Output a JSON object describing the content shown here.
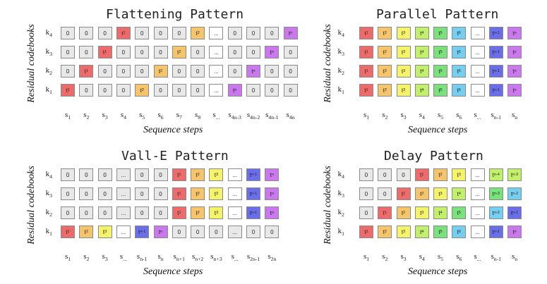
{
  "axis": {
    "ylabel": "Residual codebooks",
    "xlabel": "Sequence steps"
  },
  "palette": {
    "gray": "#e8e8e8",
    "red": "#ee6b6b",
    "orange": "#f6c46a",
    "yellow": "#f4f36a",
    "lime": "#c3f06a",
    "green": "#79e27a",
    "cyan": "#74cff0",
    "white": "#ffffff",
    "blue": "#6a6ee8",
    "purple": "#cb78ee"
  },
  "panels": [
    {
      "title": "Flattening Pattern",
      "rows": [
        {
          "label": "k|4",
          "cells": [
            [
              "0",
              "gray"
            ],
            [
              "0",
              "gray"
            ],
            [
              "0",
              "gray"
            ],
            [
              "t|1",
              "red"
            ],
            [
              "0",
              "gray"
            ],
            [
              "0",
              "gray"
            ],
            [
              "0",
              "gray"
            ],
            [
              "t|2",
              "orange"
            ],
            [
              "...",
              "white"
            ],
            [
              "0",
              "gray"
            ],
            [
              "0",
              "gray"
            ],
            [
              "0",
              "gray"
            ],
            [
              "t|n",
              "purple"
            ]
          ]
        },
        {
          "label": "k|3",
          "cells": [
            [
              "0",
              "gray"
            ],
            [
              "0",
              "gray"
            ],
            [
              "t|1",
              "red"
            ],
            [
              "0",
              "gray"
            ],
            [
              "0",
              "gray"
            ],
            [
              "0",
              "gray"
            ],
            [
              "t|2",
              "orange"
            ],
            [
              "0",
              "gray"
            ],
            [
              "...",
              "white"
            ],
            [
              "0",
              "gray"
            ],
            [
              "0",
              "gray"
            ],
            [
              "t|n",
              "purple"
            ],
            [
              "0",
              "gray"
            ]
          ]
        },
        {
          "label": "k|2",
          "cells": [
            [
              "0",
              "gray"
            ],
            [
              "t|1",
              "red"
            ],
            [
              "0",
              "gray"
            ],
            [
              "0",
              "gray"
            ],
            [
              "0",
              "gray"
            ],
            [
              "t|2",
              "orange"
            ],
            [
              "0",
              "gray"
            ],
            [
              "0",
              "gray"
            ],
            [
              "...",
              "white"
            ],
            [
              "0",
              "gray"
            ],
            [
              "t|n",
              "purple"
            ],
            [
              "0",
              "gray"
            ],
            [
              "0",
              "gray"
            ]
          ]
        },
        {
          "label": "k|1",
          "cells": [
            [
              "t|1",
              "red"
            ],
            [
              "0",
              "gray"
            ],
            [
              "0",
              "gray"
            ],
            [
              "0",
              "gray"
            ],
            [
              "t|2",
              "orange"
            ],
            [
              "0",
              "gray"
            ],
            [
              "0",
              "gray"
            ],
            [
              "0",
              "gray"
            ],
            [
              "...",
              "white"
            ],
            [
              "t|n",
              "purple"
            ],
            [
              "0",
              "gray"
            ],
            [
              "0",
              "gray"
            ],
            [
              "0",
              "gray"
            ]
          ]
        }
      ],
      "cols": [
        "s|1",
        "s|2",
        "s|3",
        "s|4",
        "s|5",
        "s|6",
        "s|7",
        "s|8",
        "s|...",
        "s|4n-3",
        "s|4n-2",
        "s|4n-1",
        "s|4n"
      ]
    },
    {
      "title": "Parallel Pattern",
      "rows": [
        {
          "label": "k|4",
          "cells": [
            [
              "t|1",
              "red"
            ],
            [
              "t|2",
              "orange"
            ],
            [
              "t|3",
              "yellow"
            ],
            [
              "t|4",
              "lime"
            ],
            [
              "t|5",
              "green"
            ],
            [
              "t|6",
              "cyan"
            ],
            [
              "...",
              "white"
            ],
            [
              "t|n-1",
              "blue"
            ],
            [
              "t|n",
              "purple"
            ]
          ]
        },
        {
          "label": "k|3",
          "cells": [
            [
              "t|1",
              "red"
            ],
            [
              "t|2",
              "orange"
            ],
            [
              "t|3",
              "yellow"
            ],
            [
              "t|4",
              "lime"
            ],
            [
              "t|5",
              "green"
            ],
            [
              "t|6",
              "cyan"
            ],
            [
              "...",
              "white"
            ],
            [
              "t|n-1",
              "blue"
            ],
            [
              "t|n",
              "purple"
            ]
          ]
        },
        {
          "label": "k|2",
          "cells": [
            [
              "t|1",
              "red"
            ],
            [
              "t|2",
              "orange"
            ],
            [
              "t|3",
              "yellow"
            ],
            [
              "t|4",
              "lime"
            ],
            [
              "t|5",
              "green"
            ],
            [
              "t|6",
              "cyan"
            ],
            [
              "...",
              "white"
            ],
            [
              "t|n-1",
              "blue"
            ],
            [
              "t|n",
              "purple"
            ]
          ]
        },
        {
          "label": "k|1",
          "cells": [
            [
              "t|1",
              "red"
            ],
            [
              "t|2",
              "orange"
            ],
            [
              "t|3",
              "yellow"
            ],
            [
              "t|4",
              "lime"
            ],
            [
              "t|5",
              "green"
            ],
            [
              "t|6",
              "cyan"
            ],
            [
              "...",
              "white"
            ],
            [
              "t|n-1",
              "blue"
            ],
            [
              "t|n",
              "purple"
            ]
          ]
        }
      ],
      "cols": [
        "s|1",
        "s|2",
        "s|3",
        "s|4",
        "s|5",
        "s|6",
        "s|...",
        "s|n-1",
        "s|n"
      ]
    },
    {
      "title": "Vall-E Pattern",
      "rows": [
        {
          "label": "k|4",
          "cells": [
            [
              "0",
              "gray"
            ],
            [
              "0",
              "gray"
            ],
            [
              "0",
              "gray"
            ],
            [
              "...",
              "gray"
            ],
            [
              "0",
              "gray"
            ],
            [
              "0",
              "gray"
            ],
            [
              "t|1",
              "red"
            ],
            [
              "t|2",
              "orange"
            ],
            [
              "t|3",
              "yellow"
            ],
            [
              "...",
              "white"
            ],
            [
              "t|n-1",
              "blue"
            ],
            [
              "t|n",
              "purple"
            ]
          ]
        },
        {
          "label": "k|3",
          "cells": [
            [
              "0",
              "gray"
            ],
            [
              "0",
              "gray"
            ],
            [
              "0",
              "gray"
            ],
            [
              "...",
              "gray"
            ],
            [
              "0",
              "gray"
            ],
            [
              "0",
              "gray"
            ],
            [
              "t|1",
              "red"
            ],
            [
              "t|2",
              "orange"
            ],
            [
              "t|3",
              "yellow"
            ],
            [
              "...",
              "white"
            ],
            [
              "t|n-1",
              "blue"
            ],
            [
              "t|n",
              "purple"
            ]
          ]
        },
        {
          "label": "k|2",
          "cells": [
            [
              "0",
              "gray"
            ],
            [
              "0",
              "gray"
            ],
            [
              "0",
              "gray"
            ],
            [
              "...",
              "gray"
            ],
            [
              "0",
              "gray"
            ],
            [
              "0",
              "gray"
            ],
            [
              "t|1",
              "red"
            ],
            [
              "t|2",
              "orange"
            ],
            [
              "t|3",
              "yellow"
            ],
            [
              "...",
              "white"
            ],
            [
              "t|n-1",
              "blue"
            ],
            [
              "t|n",
              "purple"
            ]
          ]
        },
        {
          "label": "k|1",
          "cells": [
            [
              "t|1",
              "red"
            ],
            [
              "t|2",
              "orange"
            ],
            [
              "t|3",
              "yellow"
            ],
            [
              "...",
              "white"
            ],
            [
              "t|n-1",
              "blue"
            ],
            [
              "t|n",
              "purple"
            ],
            [
              "0",
              "gray"
            ],
            [
              "0",
              "gray"
            ],
            [
              "0",
              "gray"
            ],
            [
              "...",
              "gray"
            ],
            [
              "0",
              "gray"
            ],
            [
              "0",
              "gray"
            ]
          ]
        }
      ],
      "cols": [
        "s|1",
        "s|2",
        "s|3",
        "s|...",
        "s|n-1",
        "s|n",
        "s|n+1",
        "s|n+2",
        "s|n+3",
        "s|...",
        "s|2n-1",
        "s|2n"
      ]
    },
    {
      "title": "Delay Pattern",
      "rows": [
        {
          "label": "k|4",
          "cells": [
            [
              "0",
              "gray"
            ],
            [
              "0",
              "gray"
            ],
            [
              "0",
              "gray"
            ],
            [
              "t|1",
              "red"
            ],
            [
              "t|2",
              "orange"
            ],
            [
              "t|3",
              "yellow"
            ],
            [
              "...",
              "white"
            ],
            [
              "t|n-4",
              "lime"
            ],
            [
              "t|n-3",
              "lime"
            ]
          ]
        },
        {
          "label": "k|3",
          "cells": [
            [
              "0",
              "gray"
            ],
            [
              "0",
              "gray"
            ],
            [
              "t|1",
              "red"
            ],
            [
              "t|2",
              "orange"
            ],
            [
              "t|3",
              "yellow"
            ],
            [
              "t|4",
              "lime"
            ],
            [
              "...",
              "white"
            ],
            [
              "t|n-3",
              "green"
            ],
            [
              "t|n-2",
              "cyan"
            ]
          ]
        },
        {
          "label": "k|2",
          "cells": [
            [
              "0",
              "gray"
            ],
            [
              "t|1",
              "red"
            ],
            [
              "t|2",
              "orange"
            ],
            [
              "t|3",
              "yellow"
            ],
            [
              "t|4",
              "lime"
            ],
            [
              "t|5",
              "green"
            ],
            [
              "...",
              "white"
            ],
            [
              "t|n-2",
              "cyan"
            ],
            [
              "t|n-1",
              "blue"
            ]
          ]
        },
        {
          "label": "k|1",
          "cells": [
            [
              "t|1",
              "red"
            ],
            [
              "t|2",
              "orange"
            ],
            [
              "t|3",
              "yellow"
            ],
            [
              "t|4",
              "lime"
            ],
            [
              "t|5",
              "green"
            ],
            [
              "t|6",
              "cyan"
            ],
            [
              "...",
              "white"
            ],
            [
              "t|n-1",
              "blue"
            ],
            [
              "t|n",
              "purple"
            ]
          ]
        }
      ],
      "cols": [
        "s|1",
        "s|2",
        "s|3",
        "s|4",
        "s|5",
        "s|6",
        "s|...",
        "s|n-1",
        "s|n"
      ]
    }
  ]
}
